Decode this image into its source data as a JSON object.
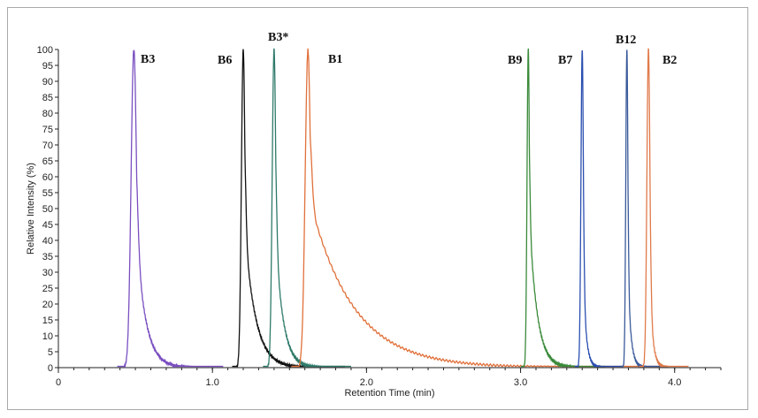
{
  "chart_data": {
    "type": "line",
    "title": "",
    "xlabel": "Retention Time  (min)",
    "ylabel": "Relative Intensity (%)",
    "xlim": [
      0,
      4.3
    ],
    "ylim": [
      0,
      100
    ],
    "x_ticks": [
      {
        "value": 0,
        "label": "0"
      },
      {
        "value": 1.0,
        "label": "1.0"
      },
      {
        "value": 2.0,
        "label": "2.0"
      },
      {
        "value": 3.0,
        "label": "3.0"
      },
      {
        "value": 4.0,
        "label": "4.0"
      }
    ],
    "y_ticks": [
      0,
      5,
      10,
      15,
      20,
      25,
      30,
      35,
      40,
      45,
      50,
      55,
      60,
      65,
      70,
      75,
      80,
      85,
      90,
      95,
      100
    ],
    "grid": false,
    "legend": "none",
    "peaks": [
      {
        "label": "B3",
        "rt": 0.49,
        "color": "#7a4fc0",
        "sigma": 0.018,
        "tail": 0.06,
        "tailAmp": 0.55
      },
      {
        "label": "B6",
        "rt": 1.2,
        "color": "#111111",
        "sigma": 0.012,
        "tail": 0.07,
        "tailAmp": 0.5
      },
      {
        "label": "B3*",
        "rt": 1.4,
        "color": "#2f7a6a",
        "sigma": 0.012,
        "tail": 0.05,
        "tailAmp": 0.5
      },
      {
        "label": "B1",
        "rt": 1.62,
        "color": "#e0703a",
        "sigma": 0.018,
        "tail": 0.28,
        "tailAmp": 0.55
      },
      {
        "label": "B9",
        "rt": 3.05,
        "color": "#3a8a3a",
        "sigma": 0.008,
        "tail": 0.05,
        "tailAmp": 0.55
      },
      {
        "label": "B7",
        "rt": 3.4,
        "color": "#2b4fb0",
        "sigma": 0.008,
        "tail": 0.02,
        "tailAmp": 0.4
      },
      {
        "label": "B12",
        "rt": 3.69,
        "color": "#3a5a9a",
        "sigma": 0.007,
        "tail": 0.02,
        "tailAmp": 0.4
      },
      {
        "label": "B2",
        "rt": 3.83,
        "color": "#e07a4a",
        "sigma": 0.01,
        "tail": 0.02,
        "tailAmp": 0.4
      }
    ]
  }
}
